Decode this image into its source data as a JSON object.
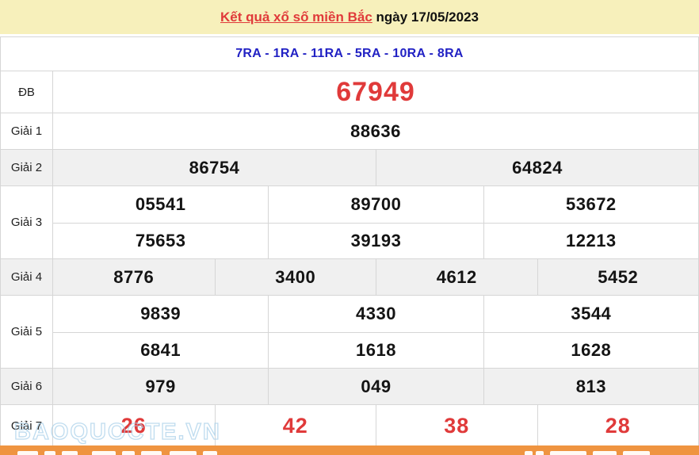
{
  "header": {
    "title_link": "Kết quả xổ số miền Bắc",
    "title_suffix": " ngày 17/05/2023"
  },
  "draw_codes": {
    "text": "7RA - 1RA - 11RA - 5RA - 10RA - 8RA"
  },
  "results": {
    "rows": [
      {
        "key": "db",
        "label": "ĐB",
        "cols": 1,
        "subrows": 1,
        "values": [
          "67949"
        ]
      },
      {
        "key": "g1",
        "label": "Giải 1",
        "cols": 1,
        "subrows": 1,
        "values": [
          "88636"
        ]
      },
      {
        "key": "g2",
        "label": "Giải 2",
        "cols": 2,
        "subrows": 1,
        "values": [
          "86754",
          "64824"
        ],
        "shade": true
      },
      {
        "key": "g3",
        "label": "Giải 3",
        "cols": 3,
        "subrows": 2,
        "values": [
          "05541",
          "89700",
          "53672",
          "75653",
          "39193",
          "12213"
        ]
      },
      {
        "key": "g4",
        "label": "Giải 4",
        "cols": 4,
        "subrows": 1,
        "values": [
          "8776",
          "3400",
          "4612",
          "5452"
        ],
        "shade": true
      },
      {
        "key": "g5",
        "label": "Giải 5",
        "cols": 3,
        "subrows": 2,
        "values": [
          "9839",
          "4330",
          "3544",
          "6841",
          "1618",
          "1628"
        ]
      },
      {
        "key": "g6",
        "label": "Giải 6",
        "cols": 3,
        "subrows": 1,
        "values": [
          "979",
          "049",
          "813"
        ],
        "shade": true
      },
      {
        "key": "g7",
        "label": "Giải 7",
        "cols": 4,
        "subrows": 1,
        "values": [
          "26",
          "42",
          "38",
          "28"
        ]
      }
    ]
  },
  "watermark": "BAOQUOCTE.VN",
  "colors": {
    "title_bar_bg": "#f7f0bb",
    "accent_red": "#e03a3a",
    "draw_codes_blue": "#2222c4",
    "shaded_row_bg": "#f0f0f0",
    "table_border": "#d6d6d6",
    "bottom_bar_orange": "#ef9440"
  }
}
